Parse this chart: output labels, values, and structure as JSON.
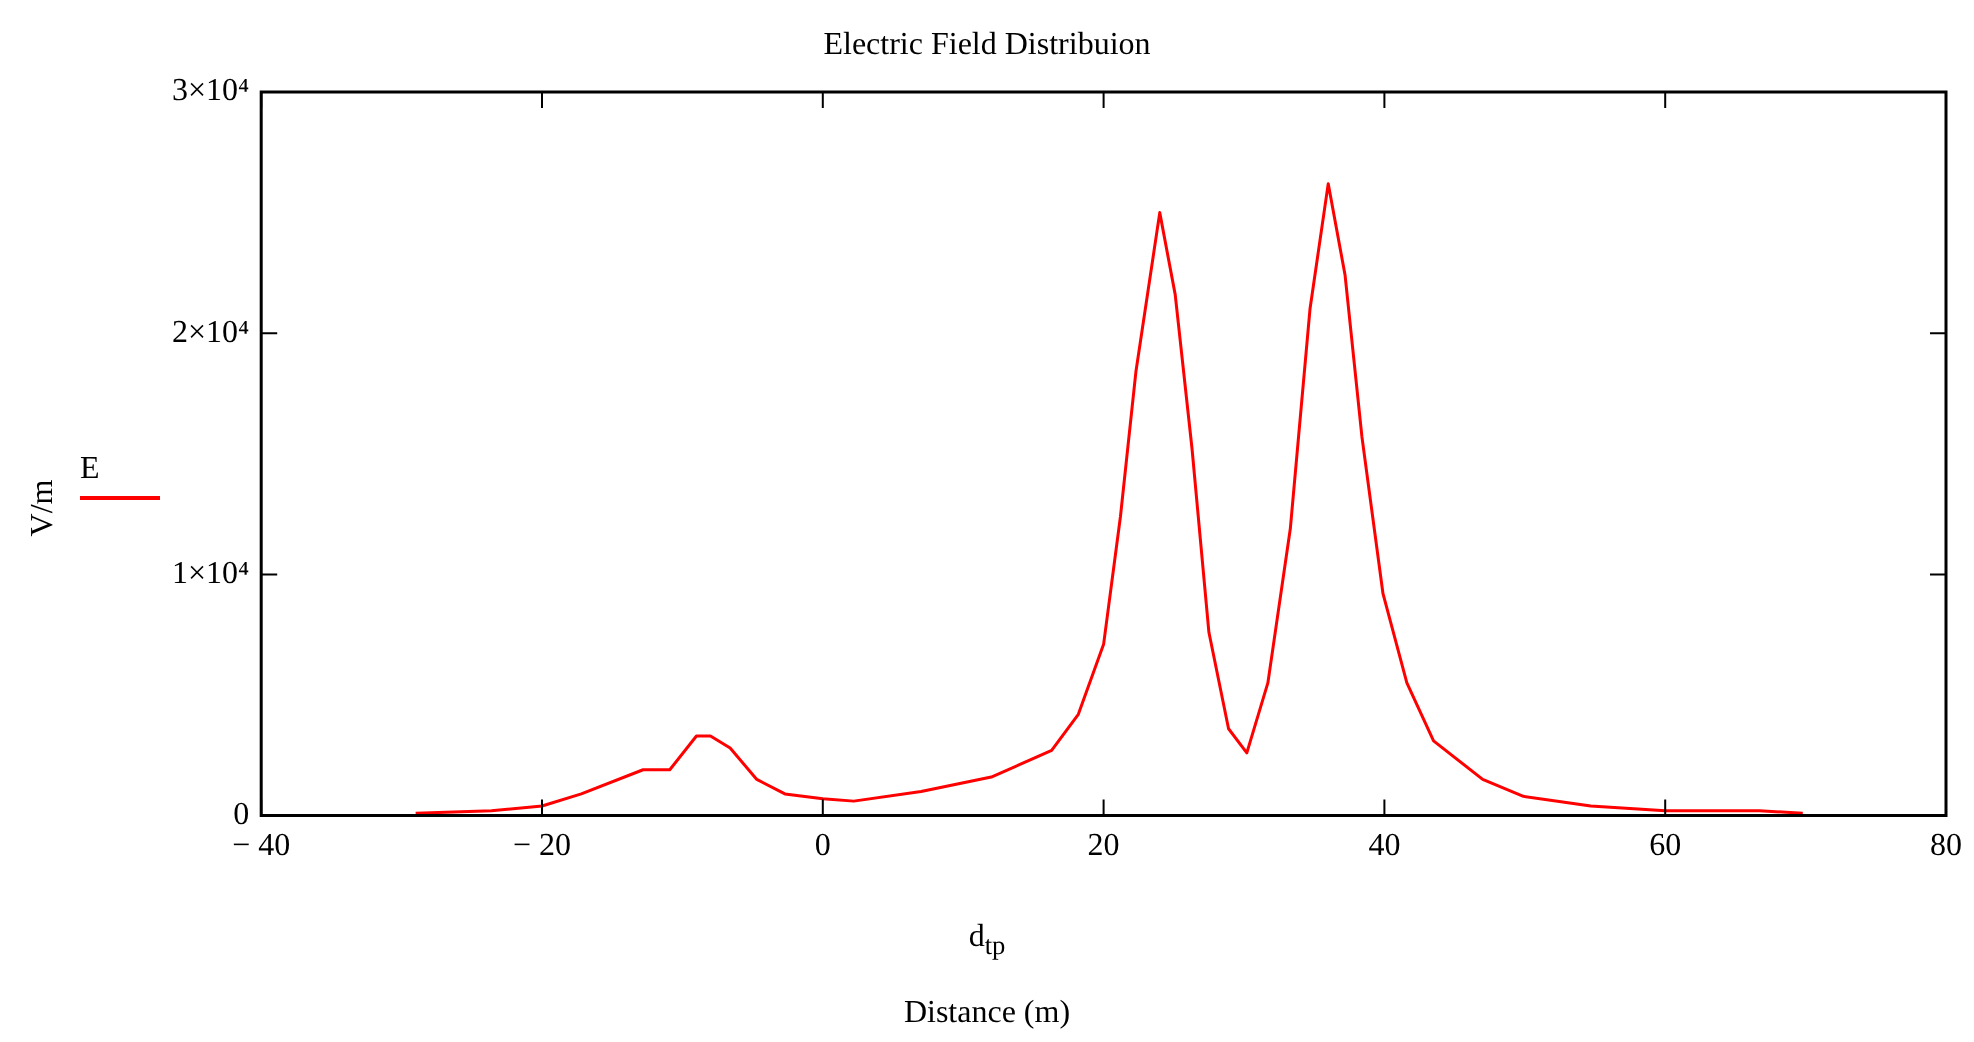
{
  "chart_data": {
    "type": "line",
    "title": "Electric Field Distribuion",
    "xlabel": "d$_{tp}$",
    "ylabel": "V/m",
    "annotations": [
      "Distance (m)"
    ],
    "legend": "left",
    "grid": false,
    "marker": "none",
    "line_style": "solid",
    "xlim": [
      -40,
      80
    ],
    "xticks": [
      {
        "value": -40,
        "label": "− 40"
      },
      {
        "value": -20,
        "label": "− 20"
      },
      0,
      20,
      40,
      60,
      80
    ],
    "ylim": [
      0,
      30000
    ],
    "yticks": [
      0,
      {
        "value": 10000,
        "label": "1×10⁴"
      },
      {
        "value": 20000,
        "label": "2×10⁴"
      },
      {
        "value": 30000,
        "label": "3×10⁴"
      }
    ],
    "x": [
      -29,
      -23.6,
      -20,
      -17.2,
      -12.8,
      -10.9,
      -9,
      -8,
      -6.6,
      -4.7,
      -2.7,
      0,
      2.2,
      7,
      12,
      16.3,
      18.2,
      20,
      21.2,
      22.3,
      24,
      25.1,
      26.3,
      27.5,
      28.9,
      30.2,
      31.7,
      33.3,
      34.7,
      36,
      37.2,
      38.4,
      39.9,
      41.6,
      43.5,
      47,
      49.9,
      54.7,
      60,
      66.7,
      69.8
    ],
    "series": [
      {
        "name": "E",
        "color": "#ff0000",
        "values": [
          100,
          200,
          400,
          900,
          1900,
          1900,
          3300,
          3300,
          2800,
          1500,
          900,
          700,
          600,
          1000,
          1600,
          2700,
          4200,
          7100,
          12400,
          18400,
          25000,
          21600,
          15200,
          7600,
          3600,
          2600,
          5500,
          11900,
          21000,
          26200,
          22400,
          15700,
          9200,
          5500,
          3100,
          1500,
          800,
          400,
          200,
          200,
          100
        ]
      }
    ]
  }
}
